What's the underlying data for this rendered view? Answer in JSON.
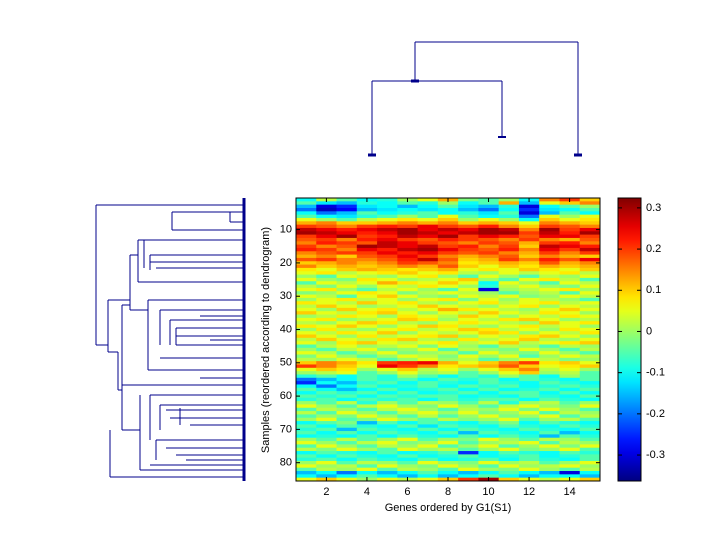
{
  "chart_data": {
    "type": "heatmap",
    "xlabel": "Genes ordered by G1(S1)",
    "ylabel": "Samples (reordered according to dendrogram)",
    "xlim": [
      0.5,
      15.5
    ],
    "xticks": [
      2,
      4,
      6,
      8,
      10,
      12,
      14
    ],
    "ylim": [
      0.5,
      85.5
    ],
    "yticks": [
      10,
      20,
      30,
      40,
      50,
      60,
      70,
      80
    ],
    "colormap": "jet",
    "clim": [
      -0.363,
      0.324
    ],
    "cticks": [
      -0.3,
      -0.2,
      -0.1,
      0,
      0.1,
      0.2,
      0.3
    ],
    "values": [
      [
        -0.1,
        0.02,
        -0.05,
        -0.1,
        -0.08,
        0,
        0.05,
        0.12,
        -0.02,
        -0.05,
        0,
        -0.1,
        0.15,
        0.2,
        0.1
      ],
      [
        -0.05,
        -0.12,
        -0.15,
        -0.08,
        -0.1,
        -0.05,
        -0.08,
        0,
        -0.1,
        -0.05,
        0.12,
        -0.15,
        0.05,
        0.1,
        0.15
      ],
      [
        -0.15,
        -0.3,
        -0.25,
        -0.12,
        -0.1,
        -0.15,
        -0.1,
        -0.05,
        -0.12,
        -0.15,
        -0.08,
        -0.3,
        -0.1,
        -0.05,
        0
      ],
      [
        -0.2,
        -0.32,
        -0.28,
        -0.15,
        -0.12,
        -0.1,
        -0.12,
        -0.1,
        -0.15,
        -0.2,
        -0.1,
        -0.25,
        -0.12,
        -0.1,
        -0.05
      ],
      [
        -0.1,
        -0.2,
        -0.15,
        -0.05,
        -0.1,
        -0.08,
        -0.05,
        -0.1,
        -0.08,
        -0.12,
        -0.05,
        -0.3,
        -0.15,
        -0.05,
        -0.1
      ],
      [
        -0.05,
        -0.1,
        -0.12,
        -0.08,
        -0.05,
        0,
        -0.05,
        0.05,
        -0.05,
        -0.1,
        -0.08,
        -0.2,
        0.05,
        0,
        0.05
      ],
      [
        0.05,
        0,
        -0.05,
        0.02,
        0.05,
        0.08,
        0.05,
        0.1,
        0,
        0.05,
        0,
        -0.1,
        0.1,
        0.05,
        0.08
      ],
      [
        0.12,
        0.15,
        0.1,
        0.1,
        0.12,
        0.15,
        0.12,
        0.15,
        0.1,
        0.12,
        0.1,
        0.05,
        0.15,
        0.12,
        0.1
      ],
      [
        0.2,
        0.18,
        0.15,
        0.2,
        0.22,
        0.2,
        0.25,
        0.2,
        0.18,
        0.22,
        0.15,
        0.1,
        0.2,
        0.18,
        0.15
      ],
      [
        0.28,
        0.25,
        0.22,
        0.25,
        0.28,
        0.3,
        0.25,
        0.28,
        0.25,
        0.3,
        0.28,
        0.15,
        0.3,
        0.2,
        0.25
      ],
      [
        0.3,
        0.28,
        0.25,
        0.22,
        0.25,
        0.3,
        0.28,
        0.25,
        0.28,
        0.3,
        0.3,
        0.2,
        0.28,
        0.22,
        0.3
      ],
      [
        0.2,
        0.25,
        0.3,
        0.2,
        0.22,
        0.28,
        0.25,
        0.3,
        0.2,
        0.25,
        0.22,
        0.18,
        0.25,
        0.25,
        0.2
      ],
      [
        0.18,
        0.2,
        0.15,
        0.22,
        0.25,
        0.2,
        0.18,
        0.22,
        0.2,
        0.18,
        0.15,
        0.2,
        0.15,
        0.12,
        0.18
      ],
      [
        0.15,
        0.22,
        0.2,
        0.18,
        0.28,
        0.25,
        0.2,
        0.18,
        0.15,
        0.2,
        0.18,
        0.12,
        0.2,
        0.22,
        0.15
      ],
      [
        0.2,
        0.15,
        0.18,
        0.3,
        0.28,
        0.25,
        0.28,
        0.2,
        0.22,
        0.15,
        0.2,
        0.1,
        0.28,
        0.25,
        0.22
      ],
      [
        0.22,
        0.2,
        0.15,
        0.25,
        0.22,
        0.28,
        0.3,
        0.25,
        0.2,
        0.18,
        0.22,
        0.15,
        0.25,
        0.2,
        0.28
      ],
      [
        0.15,
        0.18,
        0.2,
        0.2,
        0.25,
        0.22,
        0.25,
        0.2,
        0.18,
        0.2,
        0.15,
        0.12,
        0.2,
        0.15,
        0.2
      ],
      [
        0.12,
        0.15,
        0.1,
        0.18,
        0.2,
        0.25,
        0.2,
        0.15,
        0.12,
        0.15,
        0.18,
        0.1,
        0.15,
        0.12,
        0.1
      ],
      [
        0.18,
        0.2,
        0.15,
        0.15,
        0.18,
        0.22,
        0.28,
        0.18,
        0.1,
        0.12,
        0.2,
        0.15,
        0.22,
        0.18,
        0.25
      ],
      [
        0.1,
        0.12,
        0.15,
        0.12,
        0.15,
        0.2,
        0.18,
        0.15,
        0.08,
        0.1,
        0.12,
        0.1,
        0.18,
        0.12,
        0.15
      ],
      [
        0.15,
        0.1,
        0.12,
        0.1,
        0.12,
        0.15,
        0.12,
        0.18,
        0.1,
        0.05,
        0.1,
        0.08,
        0.12,
        0.1,
        0.12
      ],
      [
        0.08,
        0.05,
        0.1,
        0.12,
        0.1,
        0.08,
        0.1,
        0.12,
        0.05,
        0.08,
        0.05,
        0.1,
        0.08,
        0.05,
        0.1
      ],
      [
        0.05,
        0.08,
        0.02,
        0.05,
        0.08,
        0.1,
        0.05,
        0.08,
        0.02,
        0,
        0.05,
        0.02,
        0.05,
        0.08,
        0.02
      ],
      [
        0,
        -0.05,
        0.05,
        0.02,
        0,
        0.05,
        0.08,
        0,
        -0.05,
        0.05,
        0,
        -0.05,
        0.02,
        0,
        0.05
      ],
      [
        0.05,
        0,
        -0.02,
        0.08,
        0.05,
        0,
        0.02,
        0.05,
        0.1,
        0,
        -0.05,
        0.05,
        0.08,
        0.02,
        -0.05
      ],
      [
        -0.05,
        0.05,
        0.02,
        0.05,
        0.12,
        0.08,
        0.05,
        0.1,
        0.05,
        -0.1,
        0.05,
        0,
        -0.05,
        0.05,
        0.02
      ],
      [
        0.02,
        -0.02,
        0.05,
        0,
        0.05,
        0.02,
        0.08,
        0.05,
        0,
        -0.08,
        0.02,
        0.05,
        0,
        -0.02,
        0.05
      ],
      [
        0.05,
        0.08,
        0,
        -0.05,
        0.02,
        0.05,
        0,
        -0.05,
        0.05,
        -0.3,
        0,
        0.02,
        0.05,
        0.08,
        0
      ],
      [
        -0.02,
        0,
        0.05,
        0.08,
        0.05,
        -0.02,
        0.02,
        0.05,
        0.02,
        0,
        -0.05,
        0,
        0.02,
        -0.05,
        0.05
      ],
      [
        0.05,
        0.02,
        -0.05,
        0.05,
        0.1,
        0.05,
        0,
        -0.02,
        0.05,
        0.02,
        0.05,
        -0.02,
        0,
        0.05,
        0.02
      ],
      [
        0,
        0.05,
        0.08,
        0.02,
        0.05,
        0,
        0.05,
        0.08,
        -0.02,
        0.05,
        0,
        0.05,
        0.02,
        0,
        -0.05
      ],
      [
        0.08,
        0.05,
        0.02,
        0.1,
        0.05,
        0.08,
        0.02,
        0,
        0.05,
        0.08,
        0.02,
        0.05,
        0.08,
        0.02,
        0.05
      ],
      [
        0.02,
        0.1,
        0.05,
        0,
        0.02,
        0.05,
        0.1,
        0.05,
        0.02,
        0,
        0.05,
        0.08,
        0,
        0.05,
        0.02
      ],
      [
        0.05,
        0,
        0.1,
        0.05,
        0.08,
        0.02,
        0.05,
        0.12,
        0.08,
        0.05,
        0.02,
        0,
        0.05,
        0.1,
        0.05
      ],
      [
        0.1,
        0.05,
        0.02,
        0.08,
        0.1,
        0.05,
        0,
        0.05,
        0.02,
        0.1,
        0.05,
        0.02,
        0.08,
        0.05,
        0
      ],
      [
        0,
        0.02,
        0.08,
        0.05,
        0,
        0.08,
        0.05,
        0.02,
        0.1,
        0.05,
        0,
        0.05,
        0.02,
        0.08,
        0.05
      ],
      [
        0.05,
        0.08,
        0,
        0.02,
        0.05,
        0.1,
        0.08,
        0,
        0.05,
        0.02,
        0.08,
        0.1,
        0.05,
        0,
        0.02
      ],
      [
        0.02,
        0,
        0.05,
        0.1,
        0.08,
        0.02,
        0,
        0.05,
        0.08,
        0.05,
        0.02,
        0,
        0.1,
        0.05,
        0.08
      ],
      [
        0.08,
        0.05,
        0.1,
        0.05,
        0,
        0.05,
        0.1,
        0.08,
        0.02,
        0,
        0.05,
        0.08,
        0.02,
        0.05,
        0
      ],
      [
        0,
        0.08,
        0.02,
        0,
        0.05,
        0.08,
        0.02,
        0.05,
        0.1,
        0.08,
        0.02,
        0.05,
        0,
        0.08,
        0.05
      ],
      [
        0.05,
        0.02,
        0.08,
        0.05,
        0.1,
        0,
        0.05,
        0.02,
        0.05,
        0.1,
        0.08,
        0,
        0.05,
        0.02,
        0.08
      ],
      [
        0.1,
        0.05,
        0,
        0.08,
        0.02,
        0.05,
        0.08,
        0.1,
        0,
        0.05,
        0.02,
        0.08,
        0.1,
        0.05,
        0
      ],
      [
        0.02,
        0.1,
        0.05,
        0.02,
        0.08,
        0.1,
        0.02,
        0,
        0.08,
        0.02,
        0.05,
        0.1,
        0.02,
        0,
        0.05
      ],
      [
        0.05,
        0,
        0.08,
        0.1,
        0.05,
        0.02,
        0.05,
        0.08,
        0.02,
        0.05,
        0.1,
        0.02,
        0.05,
        0.08,
        0.1
      ],
      [
        -0.05,
        0.02,
        0.05,
        0,
        0.02,
        0.05,
        -0.02,
        0.05,
        0,
        -0.05,
        0.02,
        0,
        -0.05,
        0.02,
        0
      ],
      [
        0,
        -0.05,
        0.02,
        0.05,
        -0.02,
        0,
        0.05,
        -0.05,
        0.02,
        0,
        -0.02,
        0.05,
        0,
        -0.05,
        0.02
      ],
      [
        0.05,
        0.02,
        -0.05,
        0,
        0.05,
        -0.02,
        0,
        0.02,
        -0.05,
        0.05,
        0,
        -0.02,
        0.05,
        0,
        -0.05
      ],
      [
        -0.02,
        0.05,
        0,
        -0.05,
        0,
        0.05,
        0.02,
        -0.02,
        0.05,
        0,
        0.05,
        -0.05,
        0,
        0.05,
        0.02
      ],
      [
        0.02,
        0,
        0.05,
        0.02,
        -0.05,
        0,
        0.05,
        0,
        0.02,
        -0.05,
        0,
        0.05,
        0.02,
        -0.02,
        0
      ],
      [
        0.1,
        0.15,
        0.12,
        0.08,
        0.2,
        0.22,
        0.25,
        0.12,
        0.05,
        0.1,
        0.15,
        0.2,
        0.08,
        0.1,
        0.05
      ],
      [
        0.2,
        0.15,
        0.1,
        0.05,
        0.25,
        0.2,
        0.15,
        0.08,
        0.1,
        0.12,
        0.18,
        0.1,
        0.05,
        0.08,
        0.1
      ],
      [
        0.05,
        0.1,
        0.08,
        0,
        0.05,
        0.1,
        0.02,
        0.05,
        0,
        0.05,
        0.1,
        0.15,
        0.02,
        0.05,
        0
      ],
      [
        0,
        0.02,
        0.05,
        -0.05,
        0,
        0.05,
        0,
        0.02,
        -0.05,
        0,
        0.05,
        0.1,
        0,
        0.02,
        -0.05
      ],
      [
        -0.08,
        -0.05,
        -0.1,
        -0.05,
        -0.08,
        0,
        -0.05,
        -0.1,
        -0.05,
        -0.08,
        0,
        -0.05,
        -0.1,
        0,
        -0.05
      ],
      [
        -0.2,
        -0.15,
        -0.1,
        -0.05,
        -0.08,
        -0.05,
        -0.1,
        -0.05,
        -0.08,
        -0.05,
        -0.1,
        -0.05,
        -0.08,
        -0.1,
        -0.05
      ],
      [
        -0.25,
        -0.1,
        -0.15,
        -0.08,
        -0.05,
        -0.1,
        -0.05,
        -0.08,
        -0.1,
        -0.05,
        -0.08,
        -0.1,
        -0.05,
        -0.08,
        -0.1
      ],
      [
        -0.1,
        -0.2,
        -0.1,
        -0.05,
        -0.1,
        -0.08,
        -0.05,
        -0.1,
        -0.05,
        -0.08,
        -0.05,
        -0.1,
        -0.08,
        -0.05,
        -0.08
      ],
      [
        -0.05,
        -0.1,
        -0.15,
        -0.1,
        -0.05,
        -0.1,
        -0.08,
        -0.05,
        -0.1,
        -0.05,
        -0.1,
        -0.08,
        -0.05,
        -0.1,
        -0.05
      ],
      [
        -0.1,
        -0.05,
        -0.08,
        -0.05,
        -0.1,
        -0.05,
        -0.1,
        -0.08,
        -0.05,
        -0.1,
        -0.05,
        -0.05,
        -0.1,
        -0.05,
        -0.1
      ],
      [
        -0.05,
        -0.08,
        -0.05,
        -0.1,
        -0.05,
        -0.08,
        -0.05,
        -0.05,
        -0.1,
        -0.08,
        -0.1,
        -0.05,
        -0.08,
        -0.1,
        -0.05
      ],
      [
        -0.08,
        -0.05,
        -0.1,
        -0.05,
        -0.08,
        -0.05,
        -0.1,
        -0.05,
        -0.08,
        -0.05,
        -0.05,
        -0.1,
        -0.05,
        -0.08,
        -0.1
      ],
      [
        0,
        -0.05,
        0.02,
        -0.08,
        0,
        -0.05,
        0.02,
        0,
        -0.05,
        0.02,
        -0.08,
        0,
        0.02,
        -0.05,
        0
      ],
      [
        0.05,
        0,
        -0.05,
        0.02,
        0.05,
        0,
        -0.02,
        0.05,
        0,
        -0.05,
        0.02,
        0.05,
        0,
        -0.02,
        0.05
      ],
      [
        -0.05,
        0.02,
        0,
        -0.05,
        0.02,
        0.05,
        0,
        -0.05,
        0.02,
        0,
        0.05,
        -0.02,
        0.05,
        0,
        -0.05
      ],
      [
        0.02,
        -0.05,
        0.05,
        0,
        -0.05,
        0.02,
        0.05,
        0,
        0.05,
        -0.02,
        0,
        0.05,
        -0.05,
        0.02,
        0
      ],
      [
        -0.05,
        0,
        -0.02,
        0.05,
        0,
        -0.05,
        0.02,
        -0.05,
        0,
        0.05,
        -0.02,
        0,
        0.05,
        -0.05,
        0.02
      ],
      [
        0,
        0.05,
        -0.05,
        -0.02,
        0.05,
        0,
        -0.05,
        0.02,
        -0.02,
        0,
        0.05,
        -0.05,
        0,
        0.02,
        -0.05
      ],
      [
        -0.1,
        -0.05,
        -0.02,
        -0.15,
        -0.05,
        -0.1,
        -0.05,
        -0.08,
        -0.1,
        -0.05,
        -0.02,
        -0.1,
        -0.05,
        -0.08,
        -0.1
      ],
      [
        -0.05,
        -0.1,
        -0.05,
        -0.08,
        -0.1,
        -0.05,
        -0.12,
        -0.05,
        -0.08,
        -0.1,
        -0.05,
        -0.08,
        -0.1,
        -0.05,
        -0.08
      ],
      [
        -0.08,
        -0.05,
        -0.15,
        -0.05,
        -0.08,
        -0.1,
        -0.05,
        -0.1,
        -0.05,
        -0.08,
        -0.1,
        -0.05,
        -0.08,
        -0.1,
        -0.05
      ],
      [
        -0.05,
        -0.1,
        -0.05,
        -0.1,
        -0.05,
        -0.08,
        -0.1,
        -0.05,
        -0.15,
        -0.05,
        -0.08,
        -0.1,
        -0.05,
        -0.15,
        -0.1
      ],
      [
        -0.1,
        -0.08,
        -0.1,
        -0.05,
        -0.1,
        -0.05,
        -0.08,
        -0.1,
        -0.05,
        -0.1,
        -0.05,
        -0.08,
        -0.15,
        -0.05,
        -0.08
      ],
      [
        0,
        -0.05,
        0.02,
        -0.05,
        0,
        0.05,
        -0.05,
        0,
        -0.02,
        0.05,
        0,
        -0.05,
        0.02,
        0,
        -0.05
      ],
      [
        0.05,
        0,
        -0.05,
        0.02,
        0.05,
        -0.02,
        0,
        0.05,
        -0.05,
        0,
        0.02,
        0.05,
        -0.05,
        0.02,
        0
      ],
      [
        -0.05,
        0.05,
        0,
        -0.05,
        0.02,
        0,
        0.05,
        -0.05,
        0,
        0.05,
        -0.05,
        0,
        0.05,
        -0.02,
        0.05
      ],
      [
        0.02,
        -0.02,
        0.05,
        0,
        -0.05,
        0.05,
        0,
        0.02,
        -0.05,
        0,
        0.05,
        -0.02,
        0,
        0.05,
        -0.05
      ],
      [
        -0.1,
        -0.05,
        -0.08,
        -0.1,
        -0.05,
        -0.1,
        -0.08,
        -0.05,
        -0.25,
        -0.1,
        -0.05,
        -0.08,
        -0.1,
        -0.05,
        -0.08
      ],
      [
        -0.05,
        -0.1,
        -0.05,
        -0.08,
        -0.1,
        -0.05,
        -0.1,
        -0.08,
        -0.05,
        -0.1,
        -0.08,
        -0.05,
        -0.1,
        -0.08,
        -0.05
      ],
      [
        -0.08,
        -0.05,
        -0.1,
        -0.05,
        -0.08,
        -0.1,
        -0.05,
        -0.1,
        -0.08,
        -0.05,
        -0.1,
        -0.05,
        -0.08,
        -0.1,
        -0.05
      ],
      [
        0,
        0.05,
        -0.05,
        0.02,
        0,
        -0.05,
        0.05,
        0,
        -0.02,
        0.05,
        0,
        0.02,
        -0.05,
        0,
        0.05
      ],
      [
        0.05,
        0,
        0.02,
        -0.05,
        0.05,
        0,
        -0.02,
        0.05,
        0,
        -0.05,
        0.05,
        0,
        0.02,
        0.05,
        0
      ],
      [
        -0.05,
        0.02,
        0,
        0.05,
        -0.05,
        0.02,
        0,
        -0.05,
        0.05,
        0,
        -0.02,
        0.05,
        0,
        -0.05,
        0.02
      ],
      [
        -0.15,
        -0.1,
        -0.2,
        -0.1,
        -0.15,
        -0.1,
        -0.05,
        -0.1,
        -0.15,
        -0.1,
        -0.05,
        -0.1,
        -0.15,
        -0.3,
        -0.1
      ],
      [
        -0.1,
        -0.15,
        -0.1,
        -0.05,
        -0.1,
        -0.15,
        -0.1,
        -0.15,
        -0.1,
        -0.05,
        -0.1,
        -0.15,
        -0.1,
        -0.1,
        -0.15
      ],
      [
        0.05,
        0.1,
        0.05,
        0,
        0.05,
        0.02,
        0.05,
        0.1,
        0.2,
        0.3,
        0.1,
        0.05,
        0.02,
        0.05,
        0.1
      ]
    ]
  }
}
